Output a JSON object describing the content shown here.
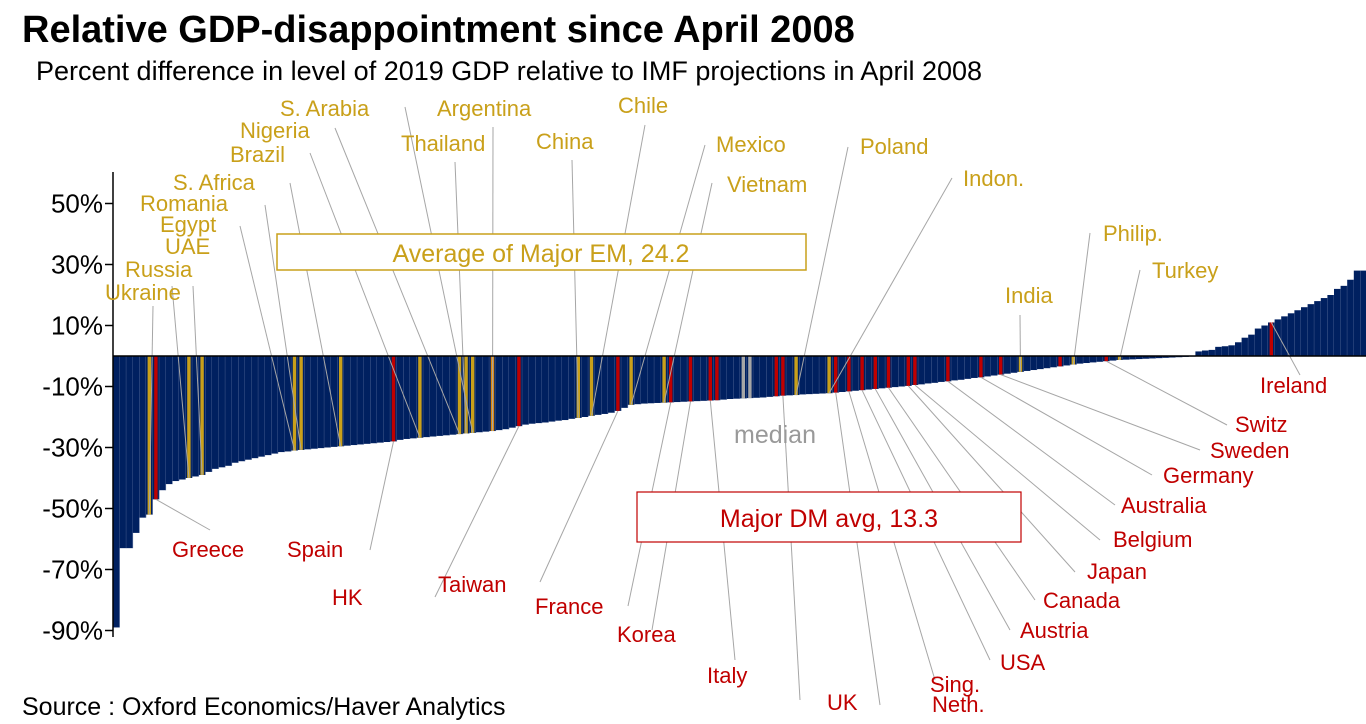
{
  "title": "Relative GDP-disappointment since April 2008",
  "subtitle": "Percent difference in level of 2019 GDP relative to IMF projections in April 2008",
  "source": "Source : Oxford Economics/Haver Analytics",
  "colors": {
    "bar": "#002060",
    "em": "#c9a01a",
    "dm": "#c00000",
    "median": "#a6a6a6",
    "argentina": "#e08a10",
    "leader": "#a6a6a6"
  },
  "chart_data": {
    "type": "bar",
    "title": "Relative GDP-disappointment since April 2008",
    "ylabel": "",
    "ylim": [
      -90,
      58
    ],
    "yticks": [
      50,
      30,
      10,
      -10,
      -30,
      -50,
      -70,
      -90
    ],
    "ytick_labels": [
      "50%",
      "30%",
      "10%",
      "-10%",
      "-30%",
      "-50%",
      "-70%",
      "-90%"
    ],
    "grid": false,
    "values": [
      -89,
      -63,
      -63,
      -58,
      -53,
      -52,
      -47,
      -44,
      -42,
      -41,
      -40.5,
      -40,
      -39.5,
      -39,
      -38,
      -37,
      -36.5,
      -36,
      -35,
      -34.5,
      -34,
      -33.5,
      -33,
      -32.5,
      -32,
      -31.5,
      -31.3,
      -31,
      -30.8,
      -30.6,
      -30.4,
      -30.2,
      -30,
      -29.8,
      -29.6,
      -29.4,
      -29.2,
      -29,
      -28.8,
      -28.6,
      -28.4,
      -28.2,
      -28,
      -27.5,
      -27.2,
      -27,
      -26.8,
      -26.6,
      -26.4,
      -26.2,
      -26,
      -25.8,
      -25.6,
      -25.4,
      -25.2,
      -25,
      -24.8,
      -24.6,
      -24.3,
      -24,
      -23.5,
      -23,
      -22.5,
      -22.2,
      -22,
      -21.8,
      -21.5,
      -21.2,
      -21,
      -20.6,
      -20.3,
      -20,
      -19.6,
      -19.3,
      -19,
      -18.6,
      -18,
      -17,
      -16,
      -15.8,
      -15.6,
      -15.5,
      -15.4,
      -15.3,
      -15.2,
      -15.1,
      -15,
      -14.9,
      -14.8,
      -14.7,
      -14.6,
      -14.5,
      -14.3,
      -14.1,
      -14,
      -13.9,
      -13.8,
      -13.7,
      -13.6,
      -13.4,
      -13.2,
      -13,
      -12.9,
      -12.8,
      -12.6,
      -12.5,
      -12.4,
      -12.3,
      -12.2,
      -12,
      -11.8,
      -11.6,
      -11.4,
      -11.2,
      -11,
      -10.8,
      -10.6,
      -10.4,
      -10.2,
      -10,
      -9.8,
      -9.5,
      -9.3,
      -9,
      -8.8,
      -8.5,
      -8.3,
      -8,
      -7.8,
      -7.5,
      -7.2,
      -7,
      -6.7,
      -6.4,
      -6.1,
      -5.8,
      -5.5,
      -5.2,
      -4.9,
      -4.6,
      -4.3,
      -4,
      -3.7,
      -3.4,
      -3.1,
      -2.8,
      -2.5,
      -2.3,
      -2.1,
      -1.9,
      -1.7,
      -1.5,
      -1.3,
      -1.2,
      -1.1,
      -1,
      -0.9,
      -0.8,
      -0.7,
      -0.6,
      -0.5,
      -0.4,
      -0.3,
      -0.2,
      1.5,
      1.8,
      2,
      3,
      3.2,
      3.5,
      4.5,
      6,
      7,
      9,
      10,
      11,
      12,
      13,
      14,
      15,
      16,
      17,
      18,
      19,
      20,
      22,
      23,
      25,
      28,
      28
    ],
    "median_bars": [
      95,
      96
    ],
    "em_labels": [
      {
        "label": "Ukraine",
        "bar": 5
      },
      {
        "label": "Russia",
        "bar": 11
      },
      {
        "label": "UAE",
        "bar": 13
      },
      {
        "label": "Egypt",
        "bar": 27
      },
      {
        "label": "Romania",
        "bar": 28
      },
      {
        "label": "S. Africa",
        "bar": 34
      },
      {
        "label": "Brazil",
        "bar": 46
      },
      {
        "label": "Nigeria",
        "bar": 52
      },
      {
        "label": "S. Arabia",
        "bar": 54
      },
      {
        "label": "Argentina",
        "bar": 57
      },
      {
        "label": "Thailand",
        "bar": 53
      },
      {
        "label": "China",
        "bar": 70
      },
      {
        "label": "Chile",
        "bar": 72
      },
      {
        "label": "Mexico",
        "bar": 78
      },
      {
        "label": "Vietnam",
        "bar": 83
      },
      {
        "label": "Poland",
        "bar": 103
      },
      {
        "label": "Indon.",
        "bar": 108
      },
      {
        "label": "India",
        "bar": 137
      },
      {
        "label": "Philip.",
        "bar": 145
      },
      {
        "label": "Turkey",
        "bar": 152
      }
    ],
    "dm_labels": [
      {
        "label": "Greece",
        "bar": 6
      },
      {
        "label": "Spain",
        "bar": 42
      },
      {
        "label": "HK",
        "bar": 61
      },
      {
        "label": "Taiwan",
        "bar": 76
      },
      {
        "label": "France",
        "bar": 84
      },
      {
        "label": "Korea",
        "bar": 87
      },
      {
        "label": "Italy",
        "bar": 90
      },
      {
        "label": "UK",
        "bar": 101
      },
      {
        "label": "Neth.",
        "bar": 109
      },
      {
        "label": "Sing.",
        "bar": 111
      },
      {
        "label": "USA",
        "bar": 113
      },
      {
        "label": "Austria",
        "bar": 115
      },
      {
        "label": "Canada",
        "bar": 117
      },
      {
        "label": "Japan",
        "bar": 120
      },
      {
        "label": "Belgium",
        "bar": 121
      },
      {
        "label": "Australia",
        "bar": 126
      },
      {
        "label": "Germany",
        "bar": 131
      },
      {
        "label": "Sweden",
        "bar": 134
      },
      {
        "label": "Switz",
        "bar": 150
      },
      {
        "label": "Ireland",
        "bar": 175
      }
    ],
    "extra_dm_bars": [
      91,
      100,
      143
    ],
    "annotations": {
      "em_avg": "Average of Major EM, 24.2",
      "dm_avg": "Major DM avg, 13.3",
      "median": "median"
    }
  }
}
